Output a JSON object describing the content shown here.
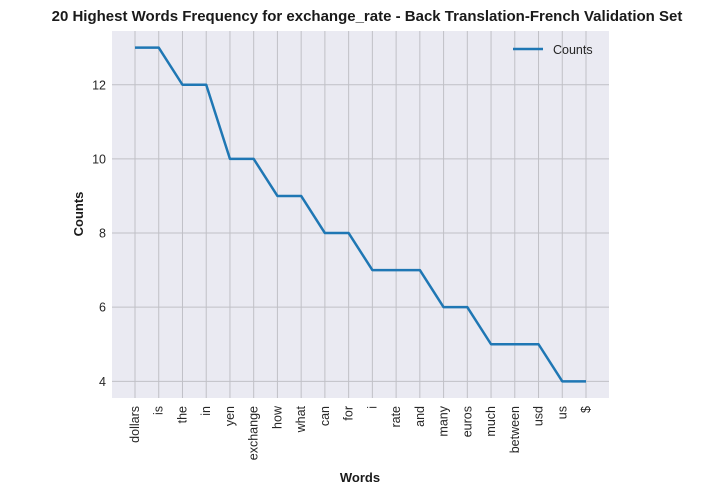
{
  "chart_data": {
    "type": "line",
    "title": "20 Highest Words Frequency for exchange_rate - Back Translation-French Validation Set",
    "xlabel": "Words",
    "ylabel": "Counts",
    "categories": [
      "dollars",
      "is",
      "the",
      "in",
      "yen",
      "exchange",
      "how",
      "what",
      "can",
      "for",
      "i",
      "rate",
      "and",
      "many",
      "euros",
      "much",
      "between",
      "usd",
      "us",
      "$"
    ],
    "series": [
      {
        "name": "Counts",
        "values": [
          13,
          13,
          12,
          12,
          10,
          10,
          9,
          9,
          8,
          8,
          7,
          7,
          7,
          6,
          6,
          5,
          5,
          5,
          4,
          4
        ]
      }
    ],
    "yticks": [
      4,
      6,
      8,
      10,
      12
    ],
    "ylim": [
      3.55,
      13.45
    ],
    "grid": true,
    "legend_position": "top-right",
    "colors": {
      "line": "#1f77b4",
      "plot_background": "#eaeaf2",
      "grid": "#c0c0c6"
    }
  }
}
